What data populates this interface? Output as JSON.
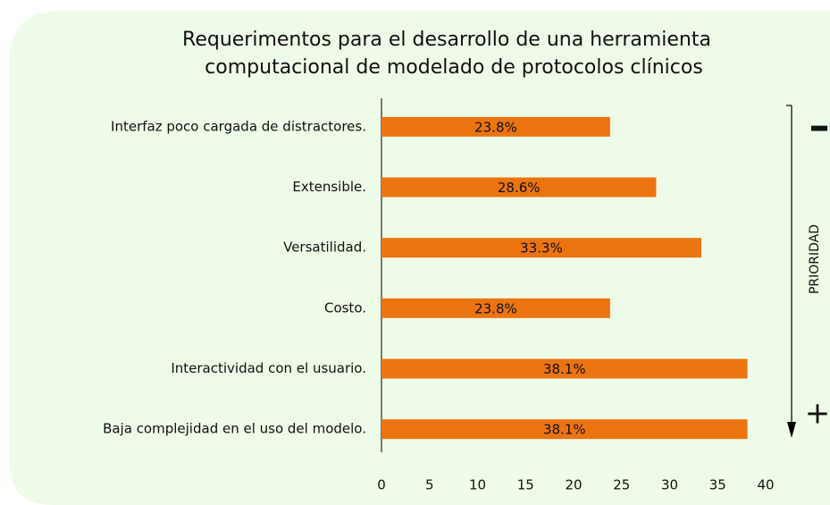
{
  "chart_data": {
    "type": "barh",
    "title": [
      "Requerimentos para el desarrollo de una herramienta",
      "computacional de modelado de protocolos clínicos"
    ],
    "categories": [
      "Interfaz poco cargada de distractores.",
      "Extensible.",
      "Versatilidad.",
      "Costo.",
      "Interactividad con el usuario.",
      "Baja complejidad en el uso del modelo."
    ],
    "values": [
      23.8,
      28.6,
      33.3,
      23.8,
      38.1,
      38.1
    ],
    "value_labels": [
      "23.8%",
      "28.6%",
      "33.3%",
      "23.8%",
      "38.1%",
      "38.1%"
    ],
    "color": "#ec7410",
    "xlim": [
      0,
      40
    ],
    "xticks": [
      0,
      5,
      10,
      15,
      20,
      25,
      30,
      35,
      40
    ],
    "annotations": [
      "PRIORIDAD",
      "–",
      "+"
    ]
  }
}
